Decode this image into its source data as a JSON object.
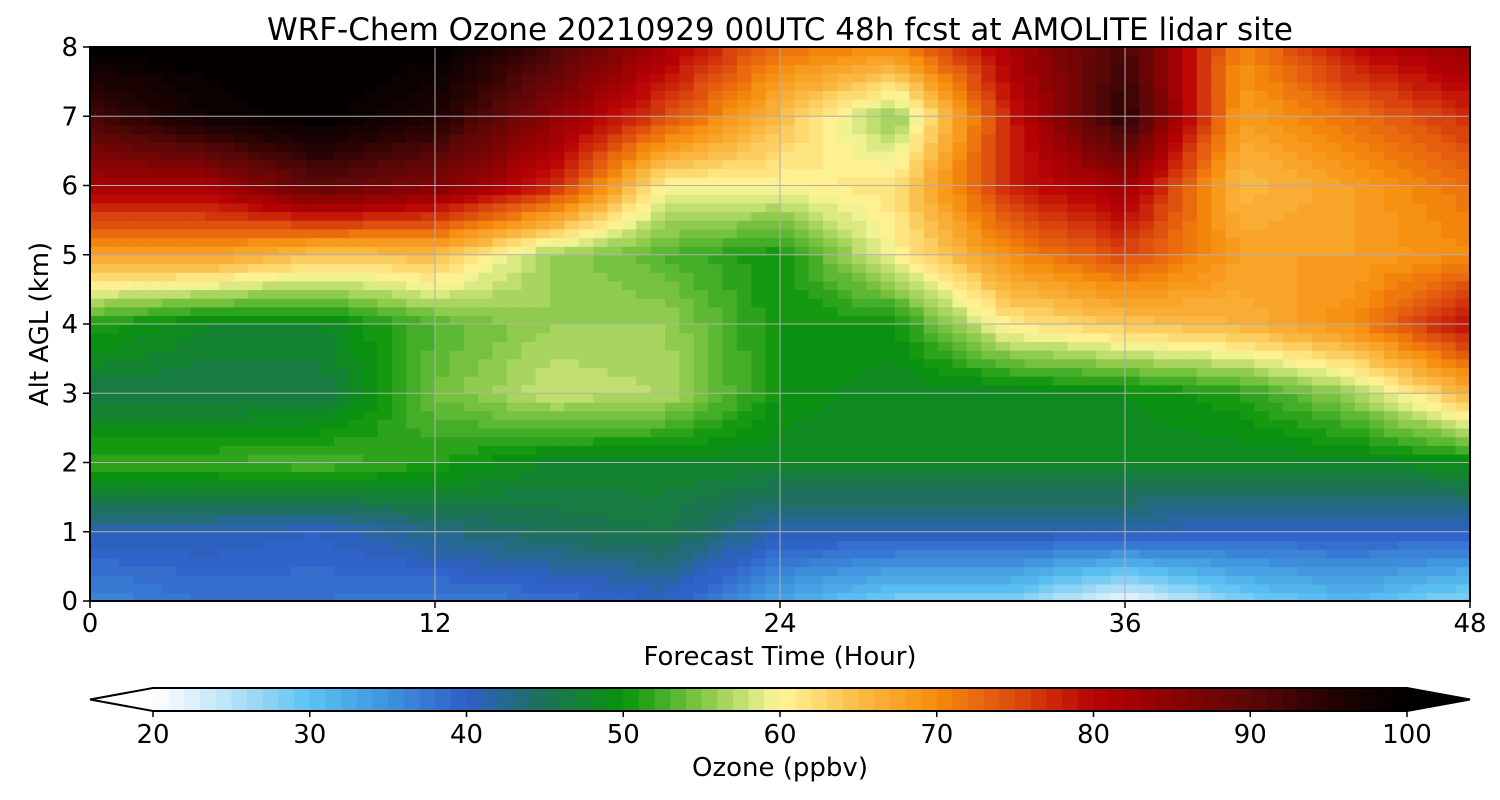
{
  "chart_data": {
    "type": "heatmap",
    "subtype": "filled-contour",
    "title": "WRF-Chem Ozone  20210929 00UTC 48h fcst at AMOLITE lidar site",
    "xlabel": "Forecast Time (Hour)",
    "ylabel": "Alt AGL (km)",
    "xlim": [
      0,
      48
    ],
    "ylim": [
      0,
      8
    ],
    "xticks": [
      0,
      12,
      24,
      36,
      48
    ],
    "yticks": [
      0,
      1,
      2,
      3,
      4,
      5,
      6,
      7,
      8
    ],
    "grid": true,
    "x_hours": [
      0,
      4,
      8,
      12,
      16,
      20,
      24,
      28,
      32,
      36,
      40,
      44,
      48
    ],
    "y_km": [
      0,
      1,
      2,
      3,
      4,
      5,
      6,
      7,
      8
    ],
    "z_ppbv": [
      [
        36,
        38,
        38,
        37,
        38,
        40,
        33,
        28,
        28,
        21,
        28,
        31,
        27
      ],
      [
        41,
        41,
        40,
        43,
        45,
        46,
        41,
        41,
        41,
        41,
        40,
        40,
        40
      ],
      [
        52,
        52,
        53,
        51,
        48,
        48,
        48,
        48,
        48,
        48,
        48,
        48,
        49
      ],
      [
        46,
        46,
        46,
        54,
        58,
        57,
        50,
        48,
        48,
        49,
        51,
        56,
        66
      ],
      [
        51,
        48,
        48,
        53,
        56,
        56,
        50,
        50,
        61,
        64,
        66,
        70,
        80
      ],
      [
        68,
        68,
        64,
        65,
        56,
        53,
        50,
        60,
        70,
        75,
        68,
        68,
        70
      ],
      [
        82,
        82,
        90,
        86,
        78,
        60,
        60,
        62,
        78,
        83,
        65,
        68,
        72
      ],
      [
        92,
        98,
        100,
        96,
        85,
        75,
        65,
        55,
        78,
        95,
        68,
        72,
        77
      ],
      [
        100,
        100,
        100,
        100,
        92,
        82,
        72,
        70,
        82,
        92,
        70,
        80,
        84
      ]
    ],
    "colorbar": {
      "label": "Ozone  (ppbv)",
      "min": 20,
      "max": 100,
      "ticks": [
        20,
        30,
        40,
        50,
        60,
        70,
        80,
        90,
        100
      ],
      "extend": "both",
      "orientation": "horizontal",
      "position": "bottom",
      "color_stops": [
        {
          "value": 20,
          "color": "#ffffff"
        },
        {
          "value": 25,
          "color": "#b8e2f8"
        },
        {
          "value": 30,
          "color": "#5bc2f2"
        },
        {
          "value": 35,
          "color": "#3e93dc"
        },
        {
          "value": 40,
          "color": "#2f5fc8"
        },
        {
          "value": 45,
          "color": "#1d7258"
        },
        {
          "value": 50,
          "color": "#08940a"
        },
        {
          "value": 55,
          "color": "#82c745"
        },
        {
          "value": 60,
          "color": "#fff79a"
        },
        {
          "value": 65,
          "color": "#fbbb45"
        },
        {
          "value": 70,
          "color": "#f58c0c"
        },
        {
          "value": 75,
          "color": "#dc4a0e"
        },
        {
          "value": 80,
          "color": "#b90205"
        },
        {
          "value": 85,
          "color": "#8a0202"
        },
        {
          "value": 90,
          "color": "#5e0707"
        },
        {
          "value": 95,
          "color": "#260303"
        },
        {
          "value": 100,
          "color": "#000000"
        }
      ]
    }
  }
}
